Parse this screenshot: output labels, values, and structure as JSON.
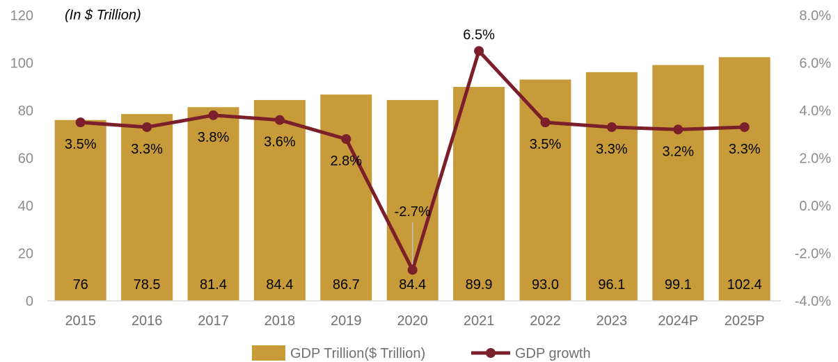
{
  "chart_data": {
    "type": "bar",
    "unit_label": "(In $ Trillion)",
    "categories": [
      "2015",
      "2016",
      "2017",
      "2018",
      "2019",
      "2020",
      "2021",
      "2022",
      "2023",
      "2024P",
      "2025P"
    ],
    "series": [
      {
        "name": "GDP Trillion($ Trillion)",
        "type": "bar",
        "axis": "left",
        "color": "#c89b3a",
        "values": [
          76,
          78.5,
          81.4,
          84.4,
          86.7,
          84.4,
          89.9,
          93.0,
          96.1,
          99.1,
          102.4
        ],
        "labels": [
          "76",
          "78.5",
          "81.4",
          "84.4",
          "86.7",
          "84.4",
          "89.9",
          "93.0",
          "96.1",
          "99.1",
          "102.4"
        ]
      },
      {
        "name": "GDP growth",
        "type": "line",
        "axis": "right",
        "color": "#7b1f2b",
        "values": [
          3.5,
          3.3,
          3.8,
          3.6,
          2.8,
          -2.7,
          6.5,
          3.5,
          3.3,
          3.2,
          3.3
        ],
        "labels": [
          "3.5%",
          "3.3%",
          "3.8%",
          "3.6%",
          "2.8%",
          "-2.7%",
          "6.5%",
          "3.5%",
          "3.3%",
          "3.2%",
          "3.3%"
        ]
      }
    ],
    "y_left": {
      "min": 0,
      "max": 120,
      "ticks": [
        0,
        20,
        40,
        60,
        80,
        100,
        120
      ],
      "tick_labels": [
        "0",
        "20",
        "40",
        "60",
        "80",
        "100",
        "120"
      ]
    },
    "y_right": {
      "min": -4,
      "max": 8,
      "ticks": [
        -4,
        -2,
        0,
        2,
        4,
        6,
        8
      ],
      "tick_labels": [
        "-4.0%",
        "-2.0%",
        "0.0%",
        "2.0%",
        "4.0%",
        "6.0%",
        "8.0%"
      ]
    },
    "grid": false,
    "legend_position": "bottom"
  }
}
